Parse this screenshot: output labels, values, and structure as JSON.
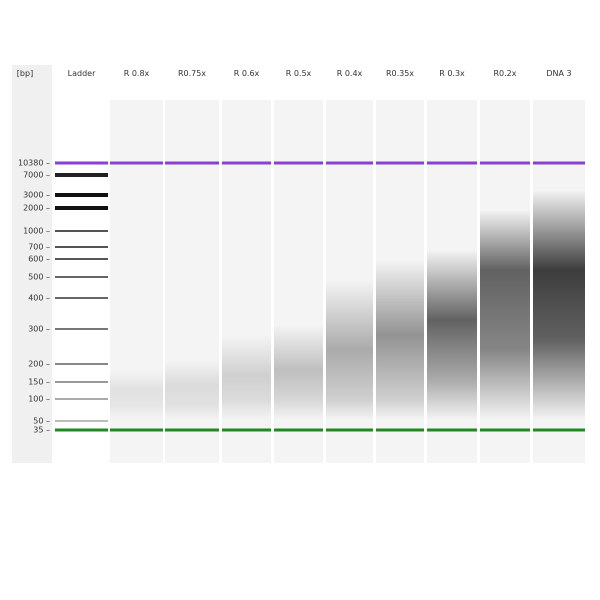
{
  "axis_label": "[bp]",
  "lanes": [
    "Ladder",
    "R 0.8x",
    "R0.75x",
    "R 0.6x",
    "R 0.5x",
    "R 0.4x",
    "R0.35x",
    "R 0.3x",
    "R0.2x",
    "DNA 3"
  ],
  "ladder_markers": [
    "10380",
    "7000",
    "3000",
    "2000",
    "1000",
    "700",
    "600",
    "500",
    "400",
    "300",
    "200",
    "150",
    "100",
    "50",
    "35"
  ],
  "colors": {
    "upper_marker": "#8a3fd6",
    "lower_marker": "#1f8a1f"
  }
}
